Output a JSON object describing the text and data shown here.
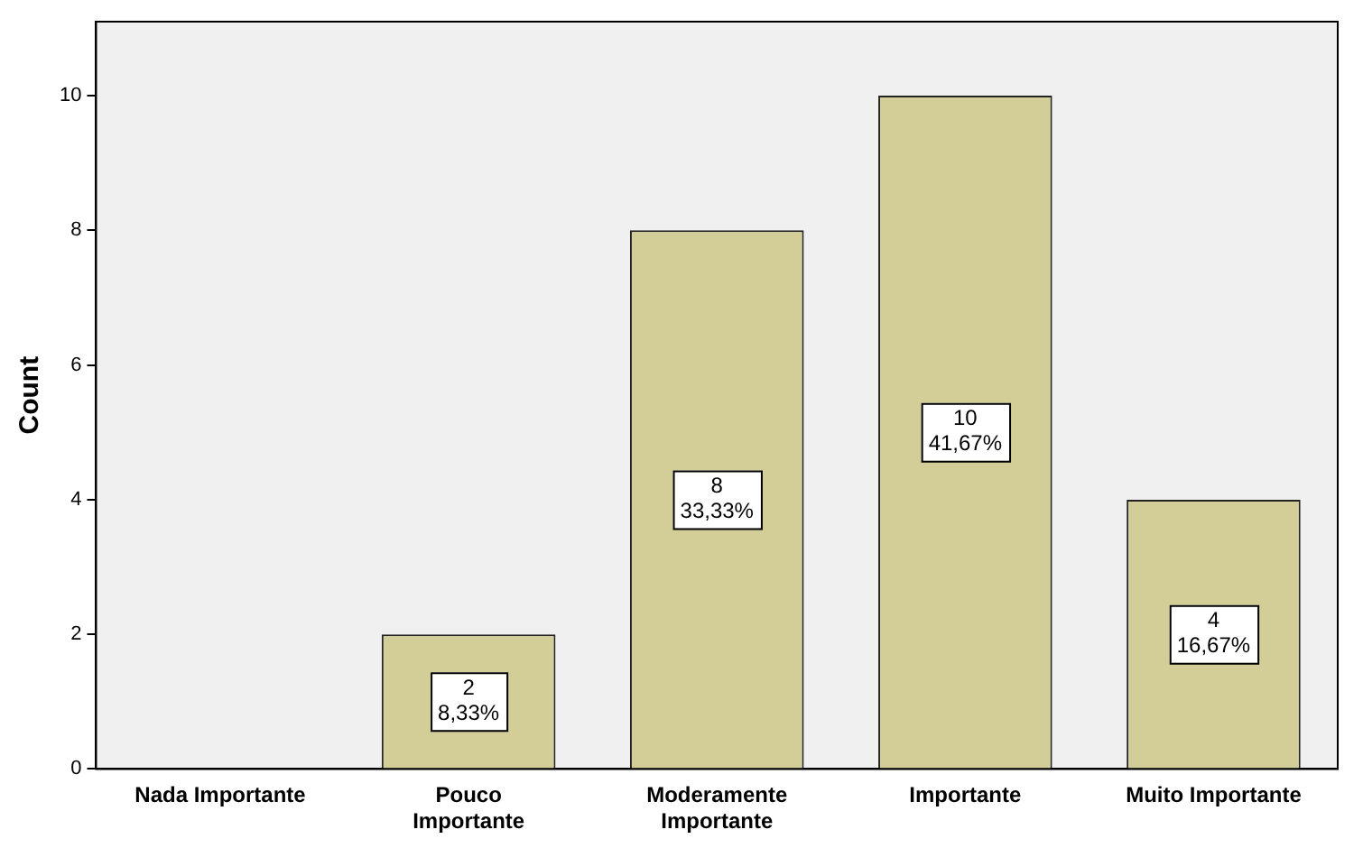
{
  "chart_data": {
    "type": "bar",
    "ylabel": "Count",
    "categories": [
      "Nada Importante",
      "Pouco Importante",
      "Moderamente Importante",
      "Importante",
      "Muito Importante"
    ],
    "values": [
      0,
      2,
      8,
      10,
      4
    ],
    "value_labels": [
      null,
      "2\n8,33%",
      "8\n33,33%",
      "10\n41,67%",
      "4\n16,67%"
    ],
    "color": "#d3ce97",
    "ylim": [
      0,
      11.1
    ],
    "yticks": [
      0,
      2,
      4,
      6,
      8,
      10
    ],
    "grid": false,
    "legend": false
  }
}
